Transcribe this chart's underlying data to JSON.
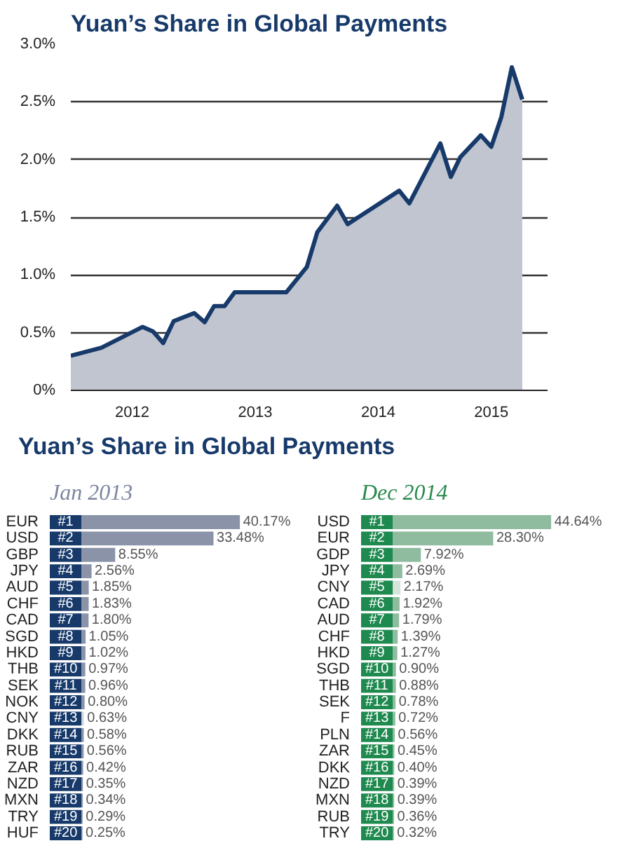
{
  "chart_data": [
    {
      "type": "area",
      "title": "Yuan’s Share in Global Payments",
      "x": [
        "2012-01",
        "2012-04",
        "2012-08",
        "2012-09",
        "2012-10",
        "2012-11",
        "2013-01",
        "2013-02",
        "2013-03",
        "2013-04",
        "2013-05",
        "2013-10",
        "2013-12",
        "2014-01",
        "2014-03",
        "2014-04",
        "2014-09",
        "2014-10",
        "2015-01",
        "2015-02",
        "2015-03",
        "2015-05",
        "2015-06",
        "2015-07",
        "2015-08",
        "2015-09"
      ],
      "series": [
        {
          "color": "#c0c5cf",
          "values": [
            0.3,
            0.37,
            0.55,
            0.51,
            0.41,
            0.6,
            0.67,
            0.59,
            0.73,
            0.73,
            0.85,
            0.85,
            1.07,
            1.37,
            1.6,
            1.44,
            1.73,
            1.62,
            2.14,
            1.85,
            2.02,
            2.21,
            2.11,
            2.37,
            2.8,
            2.52
          ]
        }
      ],
      "xlim": [
        "2012-01",
        "2015-11-15"
      ],
      "xticks": [
        {
          "value": "2012-01",
          "label": null
        },
        {
          "value": "2012-07",
          "label": "2012"
        },
        {
          "value": "2013-01",
          "label": null
        },
        {
          "value": "2013-07",
          "label": "2013"
        },
        {
          "value": "2014-01",
          "label": null
        },
        {
          "value": "2014-07",
          "label": "2014"
        },
        {
          "value": "2015-01",
          "label": null
        },
        {
          "value": "2015-06",
          "label": "2015"
        }
      ],
      "ylim": [
        0,
        3
      ],
      "yticks": [
        {
          "value": 0,
          "label": "0%"
        },
        {
          "value": 0.5,
          "label": "0.5%"
        },
        {
          "value": 1,
          "label": "1.0%"
        },
        {
          "value": 1.5,
          "label": "1.5%"
        },
        {
          "value": 2,
          "label": "2.0%"
        },
        {
          "value": 2.5,
          "label": "2.5%"
        },
        {
          "value": 3,
          "label": "3.0%"
        }
      ],
      "grid": "y"
    },
    {
      "type": "bar",
      "orientation": "horizontal",
      "title": "Yuan’s Share in Global Payments",
      "subtitle": "Jan 2013",
      "categories": [
        "EUR",
        "USD",
        "GBP",
        "JPY",
        "AUD",
        "CHF",
        "CAD",
        "SGD",
        "HKD",
        "THB",
        "SEK",
        "NOK",
        "CNY",
        "DKK",
        "RUB",
        "ZAR",
        "NZD",
        "MXN",
        "TRY",
        "HUF"
      ],
      "values": [
        40.17,
        33.48,
        8.55,
        2.56,
        1.85,
        1.83,
        1.8,
        1.05,
        1.02,
        0.97,
        0.96,
        0.8,
        0.63,
        0.58,
        0.56,
        0.42,
        0.35,
        0.34,
        0.29,
        0.25
      ],
      "value_labels": [
        "40.17%",
        "33.48%",
        "8.55%",
        "2.56%",
        "1.85%",
        "1.83%",
        "1.80%",
        "1.05%",
        "1.02%",
        "0.97%",
        "0.96%",
        "0.80%",
        "0.63%",
        "0.58%",
        "0.56%",
        "0.42%",
        "0.35%",
        "0.34%",
        "0.29%",
        "0.25%"
      ],
      "colors": [
        "#8a93a8",
        "#8a93a8",
        "#8a93a8",
        "#8a93a8",
        "#8a93a8",
        "#8a93a8",
        "#8a93a8",
        "#8a93a8",
        "#8a93a8",
        "#8a93a8",
        "#8a93a8",
        "#8a93a8",
        "#d8dadf",
        "#8a93a8",
        "#8a93a8",
        "#8a93a8",
        "#8a93a8",
        "#8a93a8",
        "#8a93a8",
        "#8a93a8"
      ],
      "annotations": [
        {
          "text": "#1",
          "y": "EUR"
        },
        {
          "text": "#2",
          "y": "USD"
        },
        {
          "text": "#3",
          "y": "GBP"
        },
        {
          "text": "#4",
          "y": "JPY"
        },
        {
          "text": "#5",
          "y": "AUD"
        },
        {
          "text": "#6",
          "y": "CHF"
        },
        {
          "text": "#7",
          "y": "CAD"
        },
        {
          "text": "#8",
          "y": "SGD"
        },
        {
          "text": "#9",
          "y": "HKD"
        },
        {
          "text": "#10",
          "y": "THB"
        },
        {
          "text": "#11",
          "y": "SEK"
        },
        {
          "text": "#12",
          "y": "NOK"
        },
        {
          "text": "#13",
          "y": "CNY"
        },
        {
          "text": "#14",
          "y": "DKK"
        },
        {
          "text": "#15",
          "y": "RUB"
        },
        {
          "text": "#16",
          "y": "ZAR"
        },
        {
          "text": "#17",
          "y": "NZD"
        },
        {
          "text": "#18",
          "y": "MXN"
        },
        {
          "text": "#19",
          "y": "TRY"
        },
        {
          "text": "#20",
          "y": "HUF"
        }
      ]
    },
    {
      "type": "bar",
      "orientation": "horizontal",
      "subtitle": "Dec 2014",
      "categories": [
        "USD",
        "EUR",
        "GDP",
        "JPY",
        "CNY",
        "CAD",
        "AUD",
        "CHF",
        "HKD",
        "SGD",
        "THB",
        "SEK",
        "F",
        "PLN",
        "ZAR",
        "DKK",
        "NZD",
        "MXN",
        "RUB",
        "TRY"
      ],
      "values": [
        44.64,
        28.3,
        7.92,
        2.69,
        2.17,
        1.92,
        1.79,
        1.39,
        1.27,
        0.9,
        0.88,
        0.78,
        0.72,
        0.56,
        0.45,
        0.4,
        0.39,
        0.39,
        0.36,
        0.32
      ],
      "value_labels": [
        "44.64%",
        "28.30%",
        "7.92%",
        "2.69%",
        "2.17%",
        "1.92%",
        "1.79%",
        "1.39%",
        "1.27%",
        "0.90%",
        "0.88%",
        "0.78%",
        "0.72%",
        "0.56%",
        "0.45%",
        "0.40%",
        "0.39%",
        "0.39%",
        "0.36%",
        "0.32%"
      ],
      "colors": [
        "#8fbb9f",
        "#8fbb9f",
        "#8fbb9f",
        "#8fbb9f",
        "#d5e5da",
        "#8fbb9f",
        "#8fbb9f",
        "#8fbb9f",
        "#8fbb9f",
        "#8fbb9f",
        "#8fbb9f",
        "#8fbb9f",
        "#8fbb9f",
        "#8fbb9f",
        "#8fbb9f",
        "#8fbb9f",
        "#8fbb9f",
        "#8fbb9f",
        "#8fbb9f",
        "#8fbb9f"
      ],
      "annotations": [
        {
          "text": "#1",
          "y": "USD"
        },
        {
          "text": "#2",
          "y": "EUR"
        },
        {
          "text": "#3",
          "y": "GDP"
        },
        {
          "text": "#4",
          "y": "JPY"
        },
        {
          "text": "#5",
          "y": "CNY"
        },
        {
          "text": "#6",
          "y": "CAD"
        },
        {
          "text": "#7",
          "y": "AUD"
        },
        {
          "text": "#8",
          "y": "CHF"
        },
        {
          "text": "#9",
          "y": "HKD"
        },
        {
          "text": "#10",
          "y": "SGD"
        },
        {
          "text": "#11",
          "y": "THB"
        },
        {
          "text": "#12",
          "y": "SEK"
        },
        {
          "text": "#13",
          "y": "F"
        },
        {
          "text": "#14",
          "y": "PLN"
        },
        {
          "text": "#15",
          "y": "ZAR"
        },
        {
          "text": "#16",
          "y": "DKK"
        },
        {
          "text": "#17",
          "y": "NZD"
        },
        {
          "text": "#18",
          "y": "MXN"
        },
        {
          "text": "#19",
          "y": "RUB"
        },
        {
          "text": "#20",
          "y": "TRY"
        }
      ]
    }
  ]
}
